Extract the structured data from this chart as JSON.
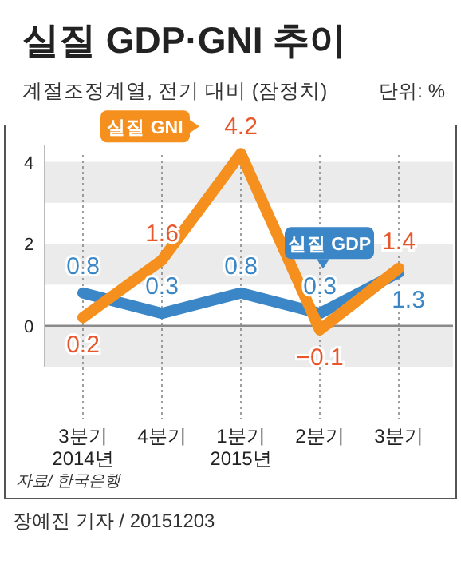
{
  "chart_data": {
    "type": "line",
    "title": "실질 GDP·GNI 추이",
    "subtitle": "계절조정계열, 전기 대비 (잠정치)",
    "ylabel": "단위: %",
    "categories": [
      "3분기\n2014년",
      "4분기",
      "1분기\n2015년",
      "2분기",
      "3분기"
    ],
    "series": [
      {
        "name": "실질 GDP",
        "color": "#3a86c6",
        "values": [
          0.8,
          0.3,
          0.8,
          0.3,
          1.3
        ]
      },
      {
        "name": "실질 GNI",
        "color": "#f5901e",
        "values": [
          0.2,
          1.6,
          4.2,
          -0.1,
          1.4
        ]
      }
    ],
    "ylim": [
      -1,
      4.4
    ],
    "yticks": [
      0,
      2,
      4
    ],
    "grid": "x",
    "data_labels": true,
    "marker": "none",
    "line_style": "solid",
    "bands": [
      {
        "axis": "y",
        "from": 3,
        "to": 4,
        "color": "#ebebeb"
      },
      {
        "axis": "y",
        "from": 1,
        "to": 2,
        "color": "#ebebeb"
      },
      {
        "axis": "y",
        "from": -1,
        "to": 0,
        "color": "#ebebeb"
      }
    ],
    "ref_lines": [
      {
        "axis": "y",
        "value": 0,
        "color": "#8a8a8a"
      }
    ],
    "annotations": [
      "자료/ 한국은행",
      "장예진 기자 / 20151203"
    ]
  }
}
